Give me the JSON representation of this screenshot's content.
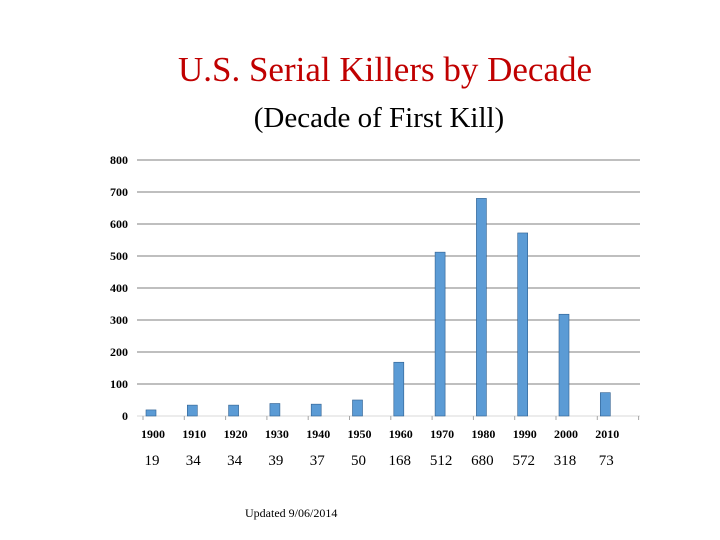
{
  "slide": {
    "title": "U.S. Serial Killers by Decade",
    "subtitle": "(Decade of First Kill)",
    "footnote": "Updated 9/06/2014"
  },
  "colors": {
    "title": "#c00000",
    "bar": "#5b9bd5",
    "bar_edge": "#2f5f8f",
    "grid": "#7f7f7f"
  },
  "chart_data": {
    "type": "bar",
    "title": "U.S. Serial Killers by Decade",
    "subtitle": "(Decade of First Kill)",
    "categories": [
      "1900",
      "1910",
      "1920",
      "1930",
      "1940",
      "1950",
      "1960",
      "1970",
      "1980",
      "1990",
      "2000",
      "2010"
    ],
    "values": [
      19,
      34,
      34,
      39,
      37,
      50,
      168,
      512,
      680,
      572,
      318,
      73
    ],
    "value_labels": [
      "19",
      "34",
      "34",
      "39",
      "37",
      "50",
      "168",
      "512",
      "680",
      "572",
      "318",
      "73"
    ],
    "ylim": [
      0,
      800
    ],
    "yticks": [
      0,
      100,
      200,
      300,
      400,
      500,
      600,
      700,
      800
    ],
    "ytick_labels": [
      "0",
      "100",
      "200",
      "300",
      "400",
      "500",
      "600",
      "700",
      "800"
    ],
    "grid": true,
    "legend": "none",
    "xlabel": "",
    "ylabel": ""
  }
}
